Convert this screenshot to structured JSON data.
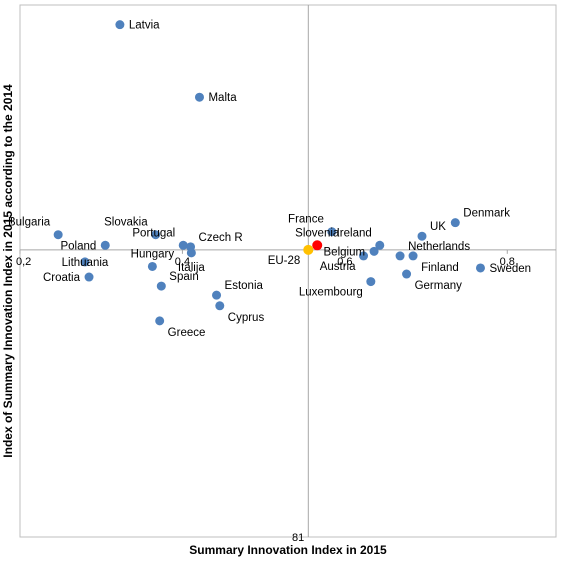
{
  "chart_data": {
    "type": "scatter",
    "title": "",
    "xlabel": "Summary Innovation Index in 2015",
    "ylabel": "Index of Summary Innovation Index in 2015 according to the 2014",
    "xlim": [
      0.2,
      0.86
    ],
    "ylim": [
      81,
      116.2
    ],
    "x_cross": 0.555,
    "y_cross": 100,
    "x_ticks": [
      {
        "value": 0.2,
        "label": "0,2"
      },
      {
        "value": 0.4,
        "label": "0,4"
      },
      {
        "value": 0.6,
        "label": "0,6"
      },
      {
        "value": 0.8,
        "label": "0,8"
      }
    ],
    "y_ticks": [
      {
        "value": 81,
        "label": "81"
      }
    ],
    "grid": false,
    "colors": {
      "default": "#4f81bd",
      "highlight": "#ff0000",
      "reference": "#ffc000",
      "highlight_label": "#ff0000"
    },
    "points": [
      {
        "name": "Latvia",
        "x": 0.323,
        "y": 114.9,
        "style": "default",
        "pos": "right"
      },
      {
        "name": "Malta",
        "x": 0.421,
        "y": 110.1,
        "style": "default",
        "pos": "right"
      },
      {
        "name": "Denmark",
        "x": 0.736,
        "y": 101.8,
        "style": "default",
        "pos": "upright"
      },
      {
        "name": "UK",
        "x": 0.695,
        "y": 100.9,
        "style": "default",
        "pos": "upright"
      },
      {
        "name": "France",
        "x": 0.584,
        "y": 101.2,
        "style": "default",
        "pos": "upleft"
      },
      {
        "name": "Slovenia",
        "x": 0.566,
        "y": 100.3,
        "style": "highlight",
        "pos": "up"
      },
      {
        "name": "EU-28",
        "x": 0.555,
        "y": 100.0,
        "style": "reference",
        "pos": "downleft"
      },
      {
        "name": "Ireland",
        "x": 0.643,
        "y": 100.3,
        "style": "default",
        "pos": "upleft"
      },
      {
        "name": "Belgium",
        "x": 0.636,
        "y": 99.9,
        "style": "default",
        "pos": "left"
      },
      {
        "name": "Austria",
        "x": 0.623,
        "y": 99.6,
        "style": "default",
        "pos": "downleft"
      },
      {
        "name": "Netherlands",
        "x": 0.668,
        "y": 99.6,
        "style": "default",
        "pos": "upright"
      },
      {
        "name": "Finland",
        "x": 0.684,
        "y": 99.6,
        "style": "default",
        "pos": "downright"
      },
      {
        "name": "Sweden",
        "x": 0.767,
        "y": 98.8,
        "style": "default",
        "pos": "right"
      },
      {
        "name": "Germany",
        "x": 0.676,
        "y": 98.4,
        "style": "default",
        "pos": "downright"
      },
      {
        "name": "Luxembourg",
        "x": 0.632,
        "y": 97.9,
        "style": "default",
        "pos": "downleft"
      },
      {
        "name": "Czech R",
        "x": 0.41,
        "y": 100.2,
        "style": "default",
        "pos": "upright"
      },
      {
        "name": "Italija",
        "x": 0.411,
        "y": 99.8,
        "style": "default",
        "pos": "down"
      },
      {
        "name": "Bulgaria",
        "x": 0.247,
        "y": 101.0,
        "style": "default",
        "pos": "upleft"
      },
      {
        "name": "Slovakia",
        "x": 0.367,
        "y": 101.0,
        "style": "default",
        "pos": "upleft"
      },
      {
        "name": "Poland",
        "x": 0.305,
        "y": 100.3,
        "style": "default",
        "pos": "left"
      },
      {
        "name": "Portugal",
        "x": 0.401,
        "y": 100.3,
        "style": "default",
        "pos": "upleft"
      },
      {
        "name": "Hungary",
        "x": 0.363,
        "y": 98.9,
        "style": "default",
        "pos": "up"
      },
      {
        "name": "Lithuania",
        "x": 0.28,
        "y": 99.2,
        "style": "default",
        "pos": "center"
      },
      {
        "name": "Croatia",
        "x": 0.285,
        "y": 98.2,
        "style": "default",
        "pos": "left"
      },
      {
        "name": "Spain",
        "x": 0.374,
        "y": 97.6,
        "style": "default",
        "pos": "upright"
      },
      {
        "name": "Estonia",
        "x": 0.442,
        "y": 97.0,
        "style": "default",
        "pos": "upright"
      },
      {
        "name": "Cyprus",
        "x": 0.446,
        "y": 96.3,
        "style": "default",
        "pos": "downright"
      },
      {
        "name": "Greece",
        "x": 0.372,
        "y": 95.3,
        "style": "default",
        "pos": "downright"
      }
    ]
  }
}
